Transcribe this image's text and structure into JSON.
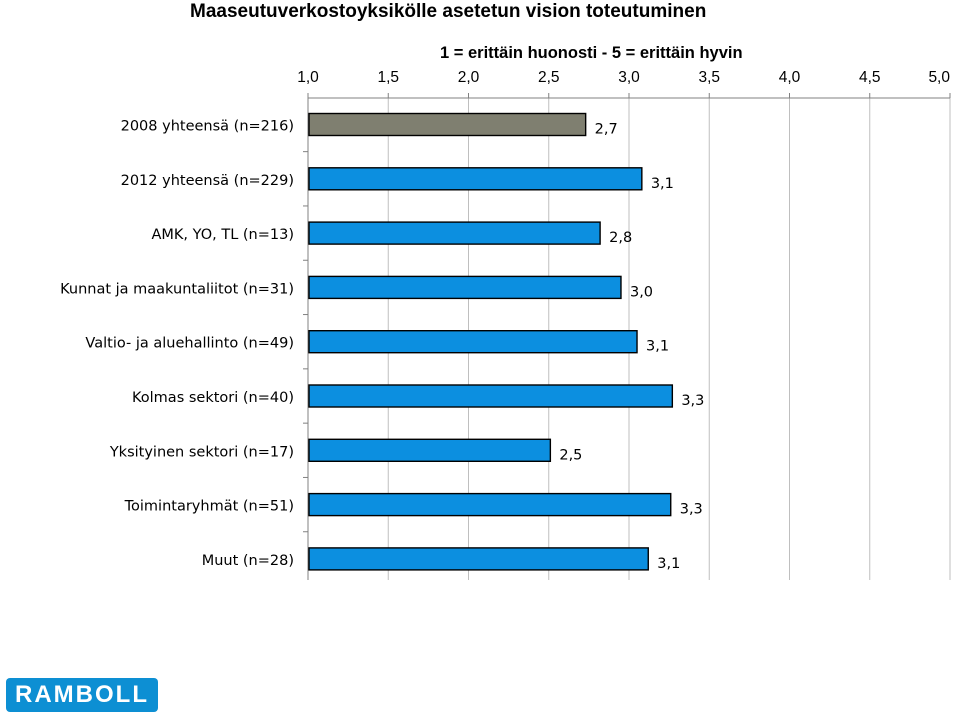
{
  "chart_data": {
    "type": "bar",
    "orientation": "horizontal",
    "title": "Maaseutuverkostoyksikölle asetetun vision toteutuminen",
    "subtitle": "1 = erittäin huonosti - 5 = erittäin hyvin",
    "xlim": [
      1.0,
      5.0
    ],
    "x_ticks": [
      "1,0",
      "1,5",
      "2,0",
      "2,5",
      "3,0",
      "3,5",
      "4,0",
      "4,5",
      "5,0"
    ],
    "x_tick_values": [
      1.0,
      1.5,
      2.0,
      2.5,
      3.0,
      3.5,
      4.0,
      4.5,
      5.0
    ],
    "grid": true,
    "axis_position": "top",
    "categories": [
      "2008 yhteensä (n=216)",
      "2012 yhteensä (n=229)",
      "AMK, YO, TL (n=13)",
      "Kunnat ja maakuntaliitot (n=31)",
      "Valtio- ja aluehallinto (n=49)",
      "Kolmas sektori (n=40)",
      "Yksityinen sektori (n=17)",
      "Toimintaryhmät (n=51)",
      "Muut (n=28)"
    ],
    "values": [
      2.73,
      3.08,
      2.82,
      2.95,
      3.05,
      3.27,
      2.51,
      3.26,
      3.12
    ],
    "value_labels": [
      "2,7",
      "3,1",
      "2,8",
      "3,0",
      "3,1",
      "3,3",
      "2,5",
      "3,3",
      "3,1"
    ],
    "colors": [
      "#7f7f70",
      "#0c8fe0",
      "#0c8fe0",
      "#0c8fe0",
      "#0c8fe0",
      "#0c8fe0",
      "#0c8fe0",
      "#0c8fe0",
      "#0c8fe0"
    ]
  },
  "logo_text": "RAMBOLL",
  "logo_color": "#0d8fd3"
}
